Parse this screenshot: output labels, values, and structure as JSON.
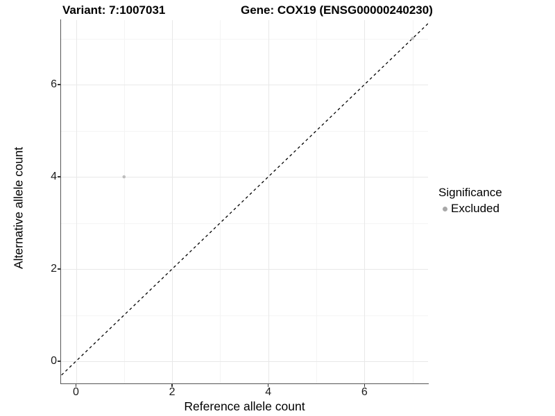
{
  "titles": {
    "variant": "Variant: 7:1007031",
    "gene": "Gene: COX19 (ENSG00000240230)"
  },
  "axes": {
    "x": {
      "label": "Reference allele count",
      "tick_labels": [
        "0",
        "2",
        "4",
        "6"
      ]
    },
    "y": {
      "label": "Alternative allele count",
      "tick_labels": [
        "0",
        "2",
        "4",
        "6"
      ]
    }
  },
  "legend": {
    "title": "Significance",
    "items": [
      {
        "label": "Excluded",
        "marker": "dot",
        "color": "#a8a8a8"
      }
    ]
  },
  "chart_data": {
    "type": "scatter",
    "title": "Variant: 7:1007031 / Gene: COX19 (ENSG00000240230)",
    "xlabel": "Reference allele count",
    "ylabel": "Alternative allele count",
    "xlim": [
      -0.35,
      7.35
    ],
    "ylim": [
      -0.5,
      7.4
    ],
    "x_ticks": [
      0,
      2,
      4,
      6
    ],
    "y_ticks": [
      0,
      2,
      4,
      6
    ],
    "minor_grid_ticks": [
      1,
      3,
      5,
      7
    ],
    "grid": "on",
    "legend_position": "right",
    "series": [
      {
        "name": "Excluded",
        "color": "#bebebe",
        "points": [
          [
            1,
            4
          ],
          [
            7,
            7
          ]
        ]
      }
    ],
    "reference_line": {
      "kind": "identity y=x",
      "style": "dashed",
      "color": "#000000"
    }
  },
  "colors": {
    "background": "#ffffff",
    "grid_major": "#e8e8e8",
    "grid_minor": "#f4f4f4",
    "axis_line": "#555555",
    "tick_mark": "#333333",
    "point": "#bebebe",
    "legend_dot": "#a8a8a8"
  }
}
